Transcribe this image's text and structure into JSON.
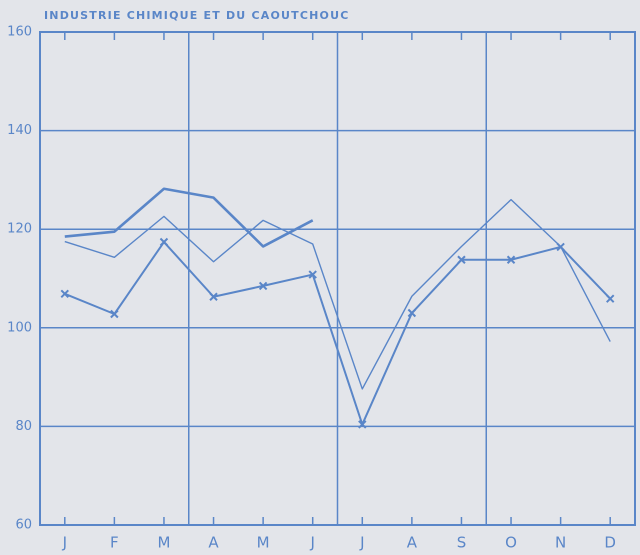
{
  "chart_data": {
    "type": "line",
    "title": "INDUSTRIE CHIMIQUE ET DU CAOUTCHOUC",
    "categories": [
      "J",
      "F",
      "M",
      "A",
      "M",
      "J",
      "J",
      "A",
      "S",
      "O",
      "N",
      "D"
    ],
    "series": [
      {
        "color": "#5a86c8",
        "width": 2.6,
        "values": [
          118.5,
          119.5,
          128.2,
          126.4,
          116.5,
          121.8,
          null,
          null,
          null,
          null,
          null,
          null
        ]
      },
      {
        "color": "#5a86c8",
        "width": 1.4,
        "values": [
          117.5,
          114.3,
          122.6,
          113.4,
          121.8,
          117,
          87.6,
          106.4,
          116.5,
          126,
          116.5,
          97.2
        ]
      },
      {
        "color": "#5a86c8",
        "width": 2,
        "marker": "x",
        "values": [
          106.9,
          102.8,
          117.4,
          106.3,
          108.5,
          110.8,
          80.4,
          103,
          113.8,
          113.8,
          116.4,
          105.9
        ]
      }
    ],
    "ylim": [
      60,
      160
    ],
    "yticks": [
      60,
      80,
      100,
      120,
      140,
      160
    ],
    "grid": true
  }
}
